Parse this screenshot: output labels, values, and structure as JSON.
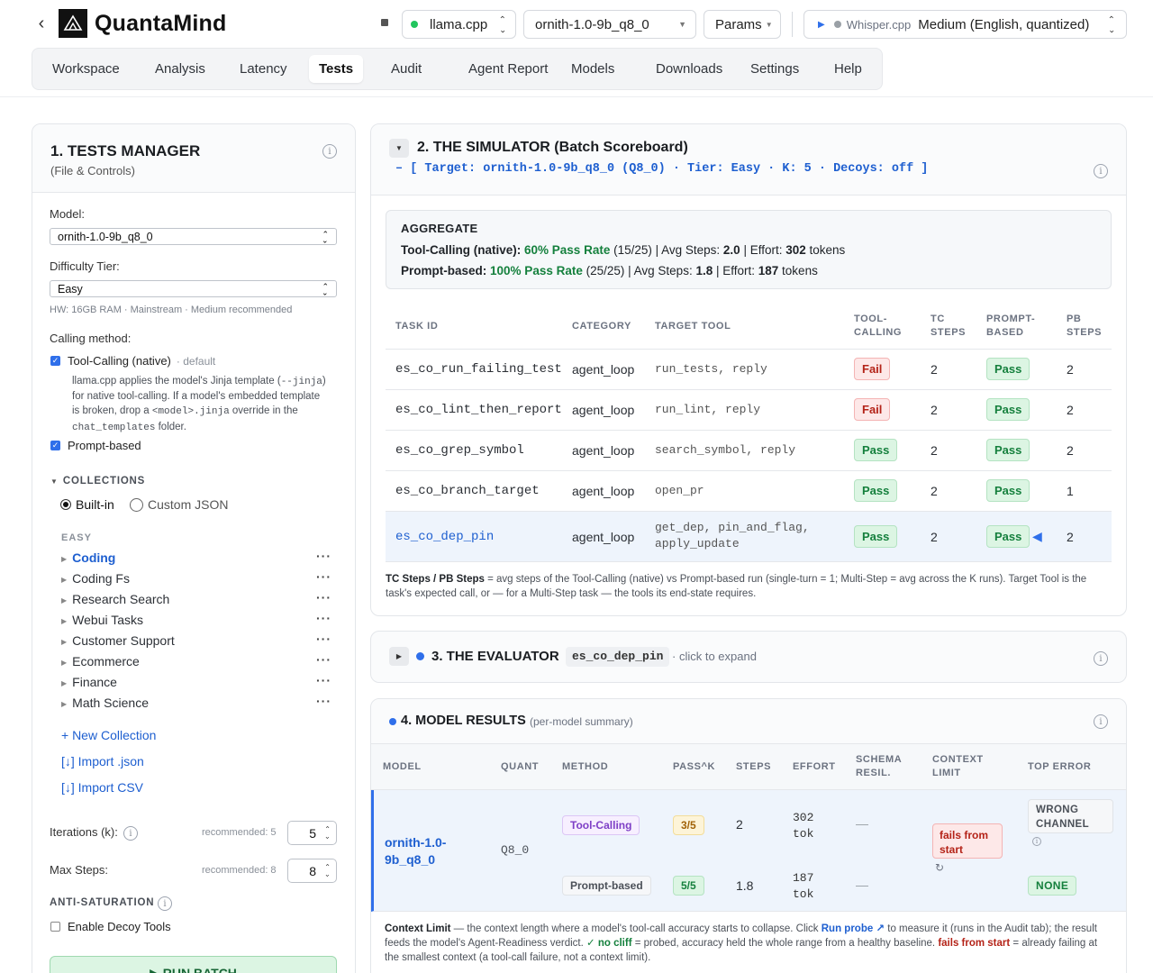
{
  "app": {
    "brand": "QuantaMind",
    "engine": "llama.cpp",
    "model": "ornith-1.0-9b_q8_0",
    "params": "Params",
    "whisper_label": "Whisper.cpp",
    "whisper_model": "Medium (English, quantized)"
  },
  "tabs": [
    "Workspace",
    "Analysis",
    "Latency",
    "Tests",
    "Audit",
    "Agent Report",
    "Models",
    "Downloads",
    "Settings",
    "Help"
  ],
  "active_tab": "Tests",
  "manager": {
    "title": "1. TESTS MANAGER",
    "subtitle": "(File & Controls)",
    "model_label": "Model:",
    "model_value": "ornith-1.0-9b_q8_0",
    "tier_label": "Difficulty Tier:",
    "tier_value": "Easy",
    "hw_note": "HW: 16GB RAM · Mainstream · Medium recommended",
    "calling_label": "Calling method:",
    "tc_label": "Tool-Calling (native)",
    "tc_default": "· default",
    "tc_desc_1": "llama.cpp applies the model's Jinja template (",
    "tc_desc_code1": "--jinja",
    "tc_desc_2": ")",
    "tc_desc_3": "for native tool-calling. If a model's embedded template",
    "tc_desc_4": "is broken, drop a ",
    "tc_desc_code2": "<model>.jinja",
    "tc_desc_5": " override in the",
    "tc_desc_code3": "chat_templates",
    "tc_desc_6": " folder.",
    "pb_label": "Prompt-based",
    "collections_title": "COLLECTIONS",
    "builtin": "Built-in",
    "custom": "Custom JSON",
    "group_easy": "EASY",
    "collections": [
      "Coding",
      "Coding Fs",
      "Research Search",
      "Webui Tasks",
      "Customer Support",
      "Ecommerce",
      "Finance",
      "Math Science"
    ],
    "new_collection": "+ New Collection",
    "import_json": "[↓] Import .json",
    "import_csv": "[↓] Import CSV",
    "iterations_label": "Iterations (k):",
    "iterations_rec": "recommended: 5",
    "iterations_value": "5",
    "maxsteps_label": "Max Steps:",
    "maxsteps_rec": "recommended: 8",
    "maxsteps_value": "8",
    "antisat_title": "ANTI-SATURATION",
    "decoy_label": "Enable Decoy Tools",
    "run_label": "▶ RUN BATCH"
  },
  "simulator": {
    "title": "2. THE SIMULATOR (Batch Scoreboard)",
    "target_line": "– [ Target: ornith-1.0-9b_q8_0 (Q8_0) · Tier: Easy · K: 5 · Decoys: off ]",
    "agg_title": "AGGREGATE",
    "tc_name": "Tool-Calling (native):",
    "tc_rate": "60% Pass Rate",
    "tc_rest_1": " (15/25) | Avg Steps: ",
    "tc_steps": "2.0",
    "tc_rest_2": " | Effort: ",
    "tc_effort": "302",
    "tc_rest_3": " tokens",
    "pb_name": "Prompt-based:",
    "pb_rate": "100% Pass Rate",
    "pb_rest_1": " (25/25) | Avg Steps: ",
    "pb_steps": "1.8",
    "pb_rest_2": " | Effort: ",
    "pb_effort": "187",
    "pb_rest_3": " tokens",
    "headers": {
      "task": "TASK ID",
      "category": "CATEGORY",
      "tool": "TARGET TOOL",
      "tc_1": "TOOL-",
      "tc_2": "CALLING",
      "tcs_1": "TC",
      "tcs_2": "STEPS",
      "pb_1": "PROMPT-",
      "pb_2": "BASED",
      "pbs_1": "PB",
      "pbs_2": "STEPS"
    },
    "rows": [
      {
        "task": "es_co_run_failing_test",
        "category": "agent_loop",
        "tool": "run_tests, reply",
        "tool2": "",
        "tc": "Fail",
        "tc_steps": "2",
        "pb": "Pass",
        "pb_steps": "2"
      },
      {
        "task": "es_co_lint_then_report",
        "category": "agent_loop",
        "tool": "run_lint, reply",
        "tool2": "",
        "tc": "Fail",
        "tc_steps": "2",
        "pb": "Pass",
        "pb_steps": "2"
      },
      {
        "task": "es_co_grep_symbol",
        "category": "agent_loop",
        "tool": "search_symbol, reply",
        "tool2": "",
        "tc": "Pass",
        "tc_steps": "2",
        "pb": "Pass",
        "pb_steps": "2"
      },
      {
        "task": "es_co_branch_target",
        "category": "agent_loop",
        "tool": "open_pr",
        "tool2": "",
        "tc": "Pass",
        "tc_steps": "2",
        "pb": "Pass",
        "pb_steps": "1"
      },
      {
        "task": "es_co_dep_pin",
        "category": "agent_loop",
        "tool": "get_dep, pin_and_flag,",
        "tool2": "apply_update",
        "tc": "Pass",
        "tc_steps": "2",
        "pb": "Pass",
        "pb_steps": "2"
      }
    ],
    "footnote_bold": "TC Steps / PB Steps",
    "footnote": " = avg steps of the Tool-Calling (native) vs Prompt-based run (single-turn = 1; Multi-Step = avg across the K runs). Target Tool is the task's expected call, or — for a Multi-Step task — the tools its end-state requires."
  },
  "evaluator": {
    "title": "3. THE EVALUATOR",
    "task": "es_co_dep_pin",
    "hint": "· click to expand"
  },
  "results": {
    "title": "4. MODEL RESULTS",
    "subtitle": "(per-model summary)",
    "headers": {
      "model": "MODEL",
      "quant": "QUANT",
      "method": "METHOD",
      "pass": "PASS^K",
      "steps": "STEPS",
      "effort": "EFFORT",
      "schema_1": "SCHEMA",
      "schema_2": "RESIL.",
      "ctx_1": "CONTEXT",
      "ctx_2": "LIMIT",
      "err": "TOP ERROR"
    },
    "model_1": "ornith-1.0-",
    "model_2": "9b_q8_0",
    "quant": "Q8_0",
    "rows": [
      {
        "method": "Tool-Calling",
        "pass": "3/5",
        "steps": "2",
        "effort_1": "302",
        "effort_2": "tok",
        "schema": "—",
        "ctx_1": "fails from",
        "ctx_2": "start",
        "err_1": "WRONG",
        "err_2": "CHANNEL"
      },
      {
        "method": "Prompt-based",
        "pass": "5/5",
        "steps": "1.8",
        "effort_1": "187",
        "effort_2": "tok",
        "schema": "—",
        "err": "NONE"
      }
    ],
    "note_bold": "Context Limit",
    "note_1": " — the context length where a model's tool-call accuracy starts to collapse. Click ",
    "note_link": "Run probe ↗",
    "note_2": " to measure it (runs in the Audit tab); the result feeds the model's Agent-Readiness verdict. ",
    "note_ok": "✓ no cliff",
    "note_3": " = probed, accuracy held the whole range from a healthy baseline. ",
    "note_fail": "fails from start",
    "note_4": " = already failing at the smallest context (a tool-call failure, not a context limit)."
  },
  "colors": {
    "accent": "#1e5fd0",
    "pass_bg": "#dcf5e3",
    "fail_bg": "#fde8e8",
    "highlight_row": "#eef4fc"
  }
}
